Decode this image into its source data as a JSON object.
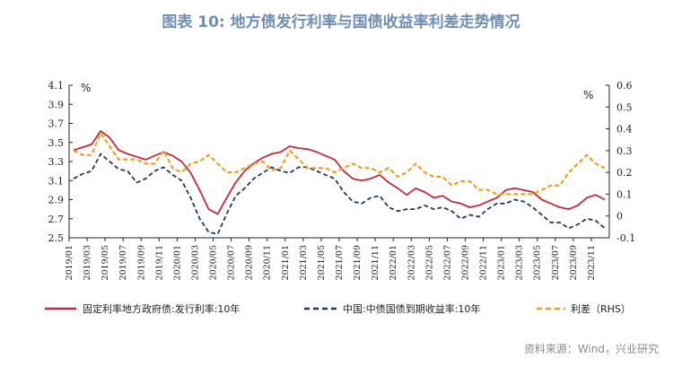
{
  "title": "图表 10: 地方债发行利率与国债收益率利差走势情况",
  "source": "资料来源：Wind，兴业研究",
  "colors": {
    "local": "#c8283c",
    "treasury": "#1f3a5c",
    "spread": "#f0a020"
  },
  "chart_data": {
    "type": "line",
    "title": "图表 10: 地方债发行利率与国债收益率利差走势情况",
    "y_left": {
      "unit": "%",
      "range": [
        2.5,
        4.1
      ],
      "ticks": [
        "4.1",
        "3.9",
        "3.7",
        "3.5",
        "3.3",
        "3.1",
        "2.9",
        "2.7",
        "2.5"
      ]
    },
    "y_right": {
      "unit": "%",
      "range": [
        -0.1,
        0.6
      ],
      "ticks": [
        "0.6",
        "0.5",
        "0.4",
        "0.3",
        "0.2",
        "0.1",
        "0",
        "-0.1"
      ]
    },
    "x_ticks": [
      "2019/01",
      "2019/03",
      "2019/05",
      "2019/07",
      "2019/09",
      "2019/11",
      "2020/01",
      "2020/03",
      "2020/05",
      "2020/07",
      "2020/09",
      "2020/11",
      "2021/01",
      "2021/03",
      "2021/05",
      "2021/07",
      "2021/09",
      "2021/11",
      "2022/01",
      "2022/03",
      "2022/05",
      "2022/07",
      "2022/09",
      "2022/11",
      "2023/01",
      "2023/03",
      "2023/05",
      "2023/07",
      "2023/09",
      "2023/11"
    ],
    "x_range": [
      "2019-01",
      "2023-12"
    ],
    "grid": false,
    "legend_position": "bottom",
    "series": [
      {
        "name": "固定利率地方政府债:发行利率:10年",
        "axis": "left",
        "style": "solid",
        "x": [
          "2019-01",
          "2019-02",
          "2019-03",
          "2019-04",
          "2019-05",
          "2019-06",
          "2019-07",
          "2019-08",
          "2019-09",
          "2019-10",
          "2019-11",
          "2019-12",
          "2020-01",
          "2020-02",
          "2020-03",
          "2020-04",
          "2020-05",
          "2020-06",
          "2020-07",
          "2020-08",
          "2020-09",
          "2020-10",
          "2020-11",
          "2020-12",
          "2021-01",
          "2021-02",
          "2021-03",
          "2021-04",
          "2021-05",
          "2021-06",
          "2021-07",
          "2021-08",
          "2021-09",
          "2021-10",
          "2021-11",
          "2021-12",
          "2022-01",
          "2022-02",
          "2022-03",
          "2022-04",
          "2022-05",
          "2022-06",
          "2022-07",
          "2022-08",
          "2022-09",
          "2022-10",
          "2022-11",
          "2022-12",
          "2023-01",
          "2023-02",
          "2023-03",
          "2023-04",
          "2023-05",
          "2023-06",
          "2023-07",
          "2023-08",
          "2023-09",
          "2023-10",
          "2023-11",
          "2023-12"
        ],
        "values": [
          3.42,
          3.45,
          3.48,
          3.62,
          3.55,
          3.42,
          3.38,
          3.35,
          3.32,
          3.36,
          3.4,
          3.36,
          3.3,
          3.18,
          3.0,
          2.8,
          2.75,
          2.92,
          3.08,
          3.2,
          3.28,
          3.34,
          3.38,
          3.4,
          3.46,
          3.44,
          3.43,
          3.4,
          3.36,
          3.32,
          3.2,
          3.12,
          3.1,
          3.12,
          3.16,
          3.08,
          3.02,
          2.95,
          3.02,
          2.98,
          2.92,
          2.94,
          2.88,
          2.86,
          2.82,
          2.84,
          2.88,
          2.92,
          3.0,
          3.02,
          3.0,
          2.98,
          2.9,
          2.86,
          2.82,
          2.8,
          2.84,
          2.92,
          2.95,
          2.9
        ]
      },
      {
        "name": "中国:中债国债到期收益率:10年",
        "axis": "left",
        "style": "dashed",
        "x": [
          "2019-01",
          "2019-02",
          "2019-03",
          "2019-04",
          "2019-05",
          "2019-06",
          "2019-07",
          "2019-08",
          "2019-09",
          "2019-10",
          "2019-11",
          "2019-12",
          "2020-01",
          "2020-02",
          "2020-03",
          "2020-04",
          "2020-05",
          "2020-06",
          "2020-07",
          "2020-08",
          "2020-09",
          "2020-10",
          "2020-11",
          "2020-12",
          "2021-01",
          "2021-02",
          "2021-03",
          "2021-04",
          "2021-05",
          "2021-06",
          "2021-07",
          "2021-08",
          "2021-09",
          "2021-10",
          "2021-11",
          "2021-12",
          "2022-01",
          "2022-02",
          "2022-03",
          "2022-04",
          "2022-05",
          "2022-06",
          "2022-07",
          "2022-08",
          "2022-09",
          "2022-10",
          "2022-11",
          "2022-12",
          "2023-01",
          "2023-02",
          "2023-03",
          "2023-04",
          "2023-05",
          "2023-06",
          "2023-07",
          "2023-08",
          "2023-09",
          "2023-10",
          "2023-11",
          "2023-12"
        ],
        "values": [
          3.12,
          3.17,
          3.2,
          3.38,
          3.3,
          3.22,
          3.2,
          3.08,
          3.12,
          3.2,
          3.24,
          3.16,
          3.1,
          2.92,
          2.7,
          2.56,
          2.54,
          2.75,
          2.94,
          3.02,
          3.12,
          3.18,
          3.24,
          3.2,
          3.18,
          3.24,
          3.24,
          3.2,
          3.16,
          3.12,
          2.98,
          2.88,
          2.86,
          2.92,
          2.94,
          2.82,
          2.78,
          2.8,
          2.8,
          2.84,
          2.8,
          2.82,
          2.78,
          2.7,
          2.74,
          2.72,
          2.8,
          2.86,
          2.86,
          2.9,
          2.88,
          2.82,
          2.74,
          2.66,
          2.66,
          2.6,
          2.64,
          2.7,
          2.68,
          2.6
        ]
      },
      {
        "name": "利差（RHS）",
        "axis": "right",
        "style": "dashed",
        "x": [
          "2019-01",
          "2019-02",
          "2019-03",
          "2019-04",
          "2019-05",
          "2019-06",
          "2019-07",
          "2019-08",
          "2019-09",
          "2019-10",
          "2019-11",
          "2019-12",
          "2020-01",
          "2020-02",
          "2020-03",
          "2020-04",
          "2020-05",
          "2020-06",
          "2020-07",
          "2020-08",
          "2020-09",
          "2020-10",
          "2020-11",
          "2020-12",
          "2021-01",
          "2021-02",
          "2021-03",
          "2021-04",
          "2021-05",
          "2021-06",
          "2021-07",
          "2021-08",
          "2021-09",
          "2021-10",
          "2021-11",
          "2021-12",
          "2022-01",
          "2022-02",
          "2022-03",
          "2022-04",
          "2022-05",
          "2022-06",
          "2022-07",
          "2022-08",
          "2022-09",
          "2022-10",
          "2022-11",
          "2022-12",
          "2023-01",
          "2023-02",
          "2023-03",
          "2023-04",
          "2023-05",
          "2023-06",
          "2023-07",
          "2023-08",
          "2023-09",
          "2023-10",
          "2023-11",
          "2023-12"
        ],
        "values": [
          0.3,
          0.28,
          0.28,
          0.38,
          0.32,
          0.26,
          0.26,
          0.26,
          0.24,
          0.24,
          0.3,
          0.22,
          0.2,
          0.24,
          0.25,
          0.28,
          0.24,
          0.2,
          0.2,
          0.22,
          0.24,
          0.25,
          0.21,
          0.22,
          0.3,
          0.26,
          0.22,
          0.22,
          0.22,
          0.2,
          0.22,
          0.24,
          0.22,
          0.22,
          0.2,
          0.22,
          0.18,
          0.2,
          0.24,
          0.2,
          0.18,
          0.18,
          0.14,
          0.16,
          0.16,
          0.12,
          0.12,
          0.1,
          0.1,
          0.1,
          0.1,
          0.1,
          0.12,
          0.14,
          0.14,
          0.2,
          0.24,
          0.28,
          0.24,
          0.22
        ]
      }
    ]
  }
}
